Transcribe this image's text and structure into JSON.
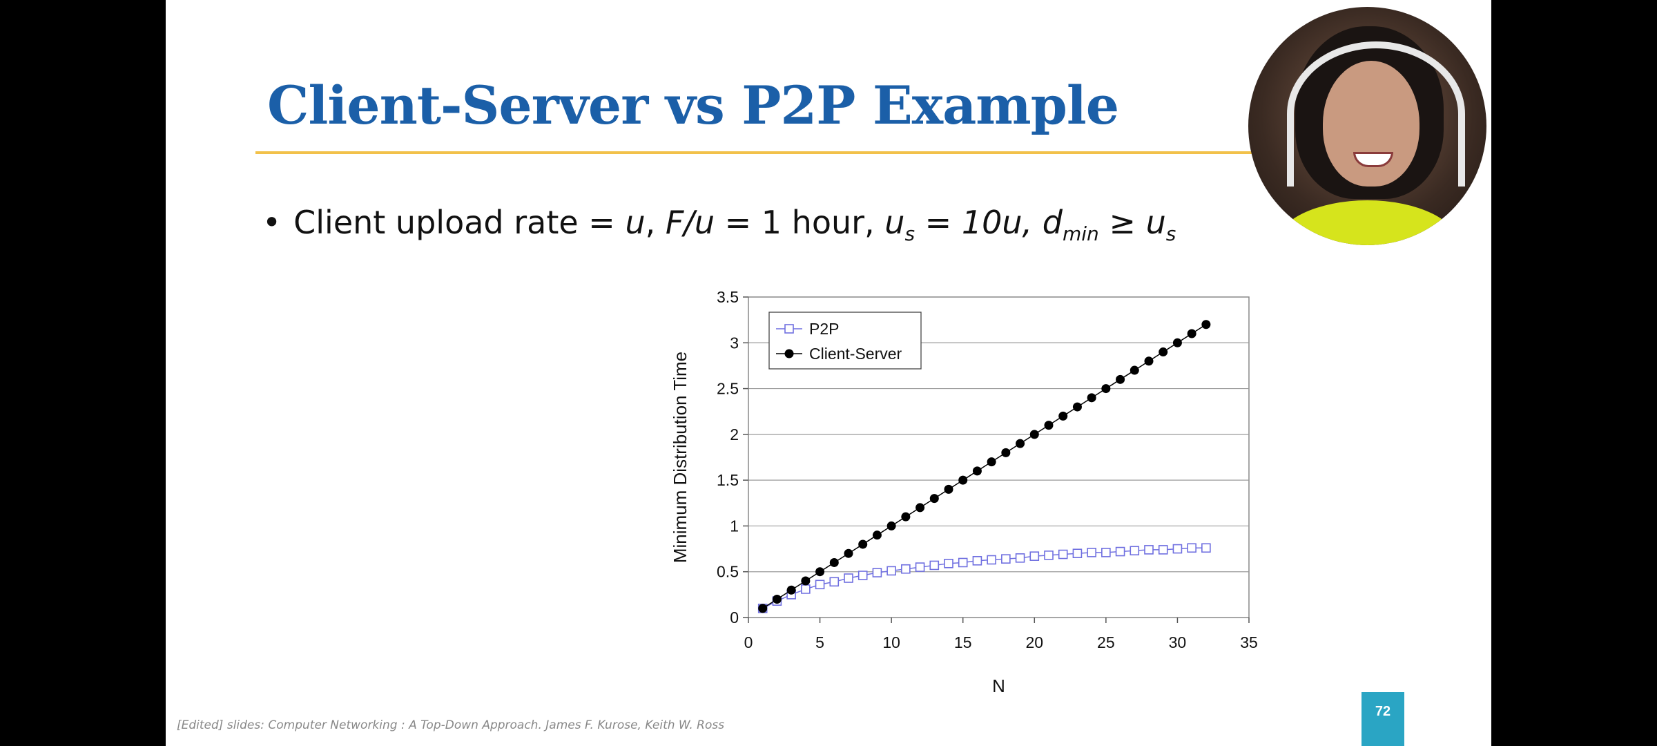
{
  "slide": {
    "title": "Client-Server vs P2P Example",
    "bullet": {
      "part1": "Client upload rate = ",
      "u1": "u",
      "part2": ", ",
      "fu": "F/u",
      "part3": " = 1 hour, ",
      "us": "u",
      "us_sub": "s",
      "us_val": " = 10u, ",
      "dmin": "d",
      "dmin_sub": "min",
      "geq": " ≥ ",
      "us2": "u",
      "us2_sub": "s"
    },
    "footer": "[Edited] slides: Computer Networking : A Top-Down Approach. James F. Kurose, Keith W. Ross",
    "page_number": "72"
  },
  "webcam": {
    "icon": "presenter-webcam-icon"
  },
  "chart_data": {
    "type": "line",
    "xlabel": "N",
    "ylabel": "Minimum Distribution Time",
    "xlim": [
      0,
      35
    ],
    "ylim": [
      0,
      3.5
    ],
    "xticks": [
      "0",
      "5",
      "10",
      "15",
      "20",
      "25",
      "30",
      "35"
    ],
    "yticks": [
      "0",
      "0.5",
      "1",
      "1.5",
      "2",
      "2.5",
      "3",
      "3.5"
    ],
    "grid": "horizontal",
    "legend": "top-left",
    "x": [
      1,
      2,
      3,
      4,
      5,
      6,
      7,
      8,
      9,
      10,
      11,
      12,
      13,
      14,
      15,
      16,
      17,
      18,
      19,
      20,
      21,
      22,
      23,
      24,
      25,
      26,
      27,
      28,
      29,
      30,
      31,
      32
    ],
    "series": [
      {
        "name": "P2P",
        "marker": "open-square",
        "color": "#6f6fe0",
        "values": [
          0.1,
          0.18,
          0.25,
          0.31,
          0.36,
          0.39,
          0.43,
          0.46,
          0.49,
          0.51,
          0.53,
          0.55,
          0.57,
          0.59,
          0.6,
          0.62,
          0.63,
          0.64,
          0.65,
          0.67,
          0.68,
          0.69,
          0.7,
          0.71,
          0.71,
          0.72,
          0.73,
          0.74,
          0.74,
          0.75,
          0.76,
          0.76
        ]
      },
      {
        "name": "Client-Server",
        "marker": "filled-circle",
        "color": "#000000",
        "values": [
          0.1,
          0.2,
          0.3,
          0.4,
          0.5,
          0.6,
          0.7,
          0.8,
          0.9,
          1.0,
          1.1,
          1.2,
          1.3,
          1.4,
          1.5,
          1.6,
          1.7,
          1.8,
          1.9,
          2.0,
          2.1,
          2.2,
          2.3,
          2.4,
          2.5,
          2.6,
          2.7,
          2.8,
          2.9,
          3.0,
          3.1,
          3.2
        ]
      }
    ]
  }
}
